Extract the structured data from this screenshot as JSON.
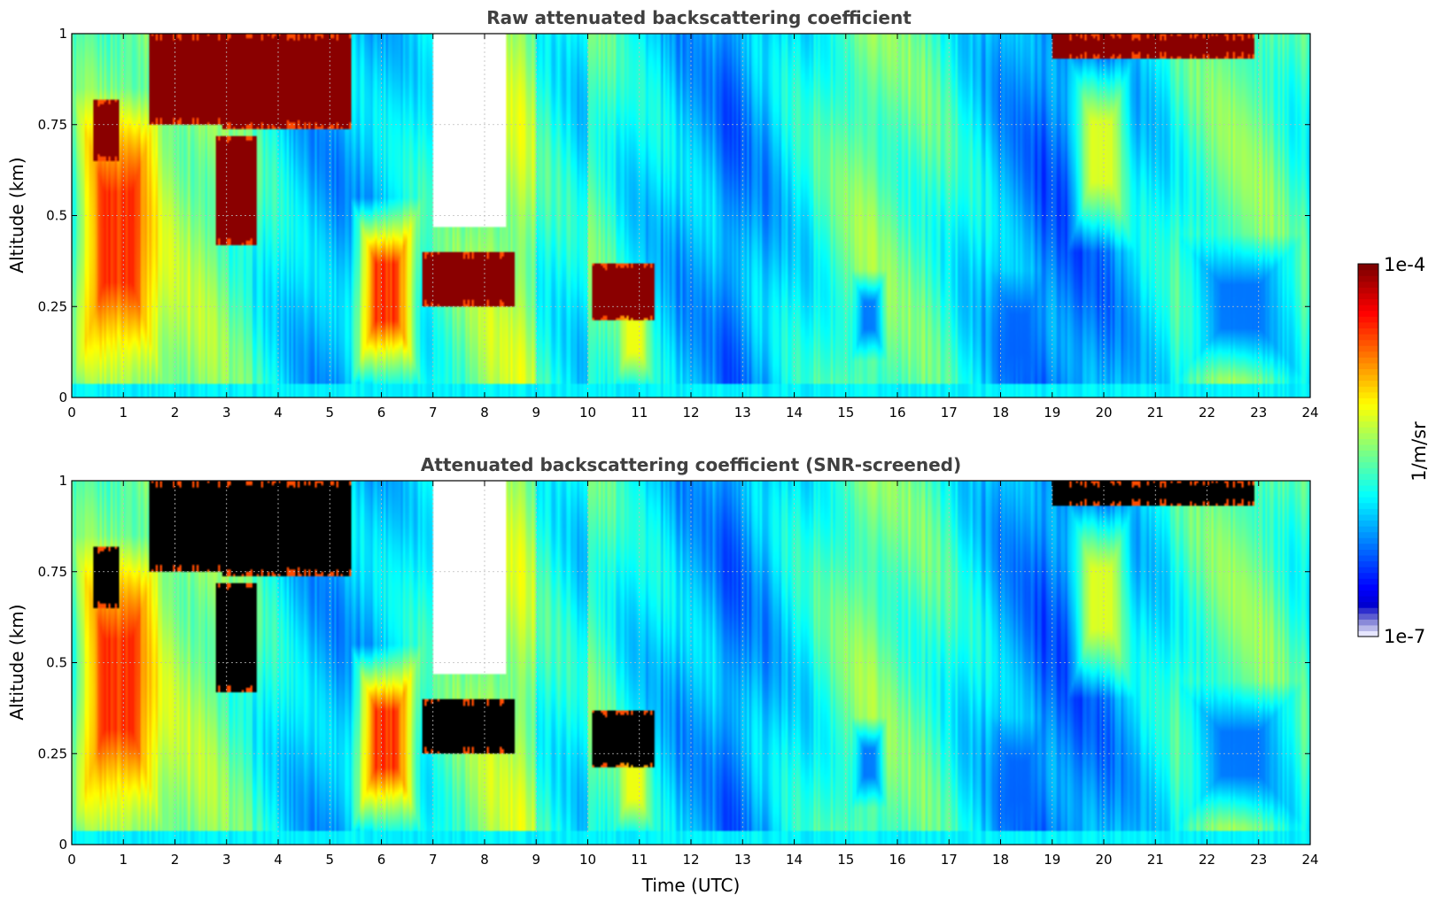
{
  "chart_data": [
    {
      "type": "heatmap",
      "title": "Raw attenuated backscattering coefficient",
      "xlabel": "",
      "ylabel": "Altitude (km)",
      "xlim": [
        0,
        24
      ],
      "ylim": [
        0,
        1
      ],
      "xticks": [
        0,
        1,
        2,
        3,
        4,
        5,
        6,
        7,
        8,
        9,
        10,
        11,
        12,
        13,
        14,
        15,
        16,
        17,
        18,
        19,
        20,
        21,
        22,
        23,
        24
      ],
      "yticks": [
        0,
        0.25,
        0.5,
        0.75,
        1
      ],
      "ytick_labels": [
        "0",
        "0.25",
        "0.5",
        "0.75",
        "1"
      ],
      "grid": true,
      "colormap": "jet",
      "color_scale": "log",
      "screened": false,
      "features": [
        {
          "kind": "aerosol_high",
          "t0": 0.0,
          "t1": 1.8,
          "z0": 0.03,
          "z1": 0.85
        },
        {
          "kind": "cloud",
          "t0": 0.4,
          "t1": 0.9,
          "z0": 0.65,
          "z1": 0.82
        },
        {
          "kind": "cloud",
          "t0": 1.5,
          "t1": 2.9,
          "z0": 0.75,
          "z1": 1.0
        },
        {
          "kind": "cloud",
          "t0": 2.8,
          "t1": 3.6,
          "z0": 0.42,
          "z1": 0.72
        },
        {
          "kind": "cloud",
          "t0": 2.9,
          "t1": 5.4,
          "z0": 0.74,
          "z1": 1.0
        },
        {
          "kind": "aerosol_high",
          "t0": 5.4,
          "t1": 6.8,
          "z0": 0.03,
          "z1": 0.55
        },
        {
          "kind": "clear_above_cloud",
          "t0": 7.0,
          "t1": 8.4,
          "z0": 0.47,
          "z1": 1.0
        },
        {
          "kind": "cloud",
          "t0": 6.8,
          "t1": 8.6,
          "z0": 0.25,
          "z1": 0.4
        },
        {
          "kind": "cloud",
          "t0": 10.1,
          "t1": 11.3,
          "z0": 0.21,
          "z1": 0.37
        },
        {
          "kind": "aerosol_moderate",
          "t0": 10.5,
          "t1": 11.3,
          "z0": 0.03,
          "z1": 0.3
        },
        {
          "kind": "low_signal",
          "t0": 15.1,
          "t1": 15.8,
          "z0": 0.1,
          "z1": 0.35
        },
        {
          "kind": "low_signal",
          "t0": 17.8,
          "t1": 18.9,
          "z0": 0.0,
          "z1": 0.35
        },
        {
          "kind": "aerosol_moderate",
          "t0": 19.3,
          "t1": 20.6,
          "z0": 0.4,
          "z1": 0.95
        },
        {
          "kind": "cloud",
          "t0": 19.0,
          "t1": 22.9,
          "z0": 0.93,
          "z1": 1.0
        },
        {
          "kind": "low_signal",
          "t0": 21.4,
          "t1": 23.9,
          "z0": 0.05,
          "z1": 0.45
        }
      ]
    },
    {
      "type": "heatmap",
      "title": "Attenuated backscattering coefficient (SNR-screened)",
      "xlabel": "Time (UTC)",
      "ylabel": "Altitude (km)",
      "xlim": [
        0,
        24
      ],
      "ylim": [
        0,
        1
      ],
      "xticks": [
        0,
        1,
        2,
        3,
        4,
        5,
        6,
        7,
        8,
        9,
        10,
        11,
        12,
        13,
        14,
        15,
        16,
        17,
        18,
        19,
        20,
        21,
        22,
        23,
        24
      ],
      "yticks": [
        0,
        0.25,
        0.5,
        0.75,
        1
      ],
      "ytick_labels": [
        "0",
        "0.25",
        "0.5",
        "0.75",
        "1"
      ],
      "grid": true,
      "colormap": "jet",
      "color_scale": "log",
      "screened": true,
      "screened_color": "#000000",
      "features": [
        {
          "kind": "aerosol_high",
          "t0": 0.0,
          "t1": 1.8,
          "z0": 0.03,
          "z1": 0.85
        },
        {
          "kind": "cloud",
          "t0": 0.4,
          "t1": 0.9,
          "z0": 0.65,
          "z1": 0.82
        },
        {
          "kind": "cloud",
          "t0": 1.5,
          "t1": 2.9,
          "z0": 0.75,
          "z1": 1.0
        },
        {
          "kind": "cloud",
          "t0": 2.8,
          "t1": 3.6,
          "z0": 0.42,
          "z1": 0.72
        },
        {
          "kind": "cloud",
          "t0": 2.9,
          "t1": 5.4,
          "z0": 0.74,
          "z1": 1.0
        },
        {
          "kind": "aerosol_high",
          "t0": 5.4,
          "t1": 6.8,
          "z0": 0.03,
          "z1": 0.55
        },
        {
          "kind": "clear_above_cloud",
          "t0": 7.0,
          "t1": 8.4,
          "z0": 0.47,
          "z1": 1.0
        },
        {
          "kind": "cloud",
          "t0": 6.8,
          "t1": 8.6,
          "z0": 0.25,
          "z1": 0.4
        },
        {
          "kind": "cloud",
          "t0": 10.1,
          "t1": 11.3,
          "z0": 0.21,
          "z1": 0.37
        },
        {
          "kind": "aerosol_moderate",
          "t0": 10.5,
          "t1": 11.3,
          "z0": 0.03,
          "z1": 0.3
        },
        {
          "kind": "low_signal",
          "t0": 15.1,
          "t1": 15.8,
          "z0": 0.1,
          "z1": 0.35
        },
        {
          "kind": "low_signal",
          "t0": 17.8,
          "t1": 18.9,
          "z0": 0.0,
          "z1": 0.35
        },
        {
          "kind": "aerosol_moderate",
          "t0": 19.3,
          "t1": 20.6,
          "z0": 0.4,
          "z1": 0.95
        },
        {
          "kind": "cloud",
          "t0": 19.0,
          "t1": 22.9,
          "z0": 0.93,
          "z1": 1.0
        },
        {
          "kind": "low_signal",
          "t0": 21.4,
          "t1": 23.9,
          "z0": 0.05,
          "z1": 0.45
        }
      ]
    }
  ],
  "colorbar": {
    "label": "1/m/sr",
    "max_label": "1e-4",
    "min_label": "1e-7",
    "range": [
      1e-07,
      0.0001
    ],
    "scale": "log",
    "colormap": "jet"
  }
}
